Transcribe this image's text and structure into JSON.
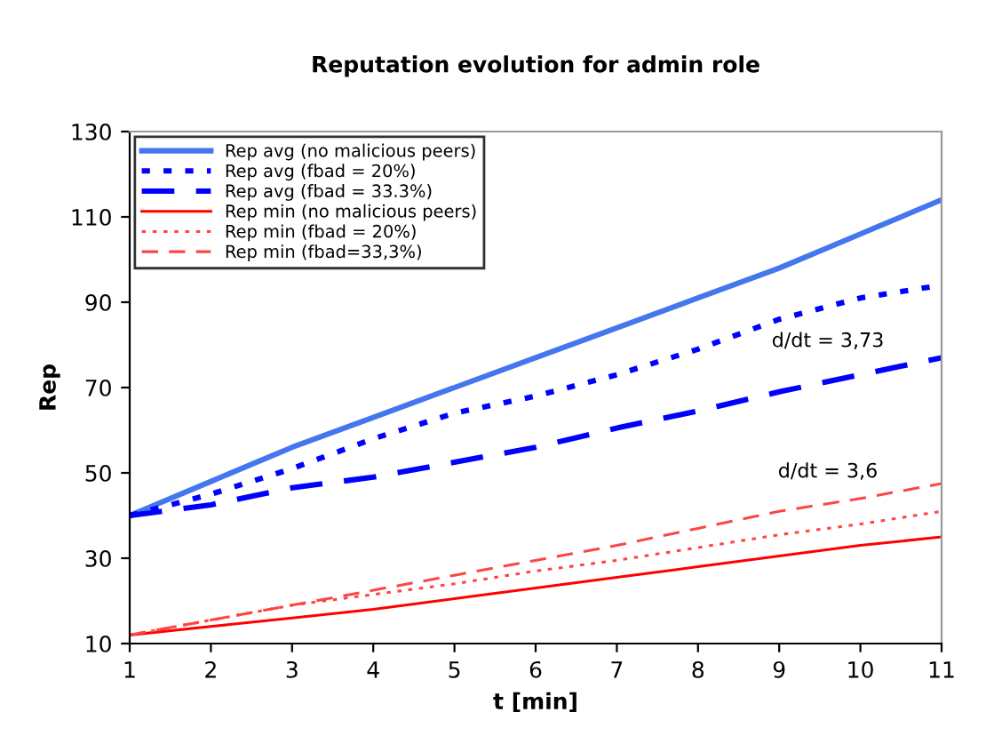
{
  "chart_data": {
    "type": "line",
    "title": "Reputation evolution for admin role",
    "xlabel": "t [min]",
    "ylabel": "Rep",
    "x": [
      1,
      2,
      3,
      4,
      5,
      6,
      7,
      8,
      9,
      10,
      11
    ],
    "xlim": [
      1,
      11
    ],
    "xticks": [
      1,
      2,
      3,
      4,
      5,
      6,
      7,
      8,
      9,
      10,
      11
    ],
    "ylim": [
      10,
      130
    ],
    "yticks": [
      10,
      30,
      50,
      70,
      90,
      110,
      130
    ],
    "grid": false,
    "legend": "top left",
    "marker": "none",
    "series": [
      {
        "name": "Rep avg (no malicious peers)",
        "color": "#4477ee",
        "line_style": "solid",
        "values": [
          40,
          48,
          56,
          63,
          70,
          77,
          84,
          91,
          98,
          106,
          114
        ]
      },
      {
        "name": "Rep avg (fbad = 20%)",
        "color": "#0000ff",
        "line_style": "dotted",
        "values": [
          40,
          45,
          51,
          58,
          64,
          68,
          73,
          79,
          86,
          91,
          94
        ]
      },
      {
        "name": "Rep avg (fbad = 33.3%)",
        "color": "#0000ff",
        "line_style": "dashed",
        "values": [
          40,
          42.5,
          46.5,
          49,
          52.5,
          56,
          60.5,
          64.5,
          69,
          73,
          77
        ]
      },
      {
        "name": "Rep min (no malicious peers)",
        "color": "#ff0000",
        "line_style": "solid",
        "values": [
          12,
          14,
          16,
          18,
          20.5,
          23,
          25.5,
          28,
          30.5,
          33,
          35
        ]
      },
      {
        "name": "Rep min (fbad = 20%)",
        "color": "#ff4444",
        "line_style": "dotted",
        "values": [
          12,
          15.5,
          19,
          21.5,
          24,
          27,
          29.5,
          32.5,
          35.5,
          38,
          41
        ]
      },
      {
        "name": "Rep min (fbad=33,3%)",
        "color": "#ff4444",
        "line_style": "dashed",
        "values": [
          12,
          15.5,
          19,
          22.5,
          26,
          29.5,
          33,
          37,
          41,
          44,
          47.5
        ]
      }
    ],
    "annotations": [
      "d/dt = 3,73",
      "d/dt = 3,6"
    ]
  }
}
